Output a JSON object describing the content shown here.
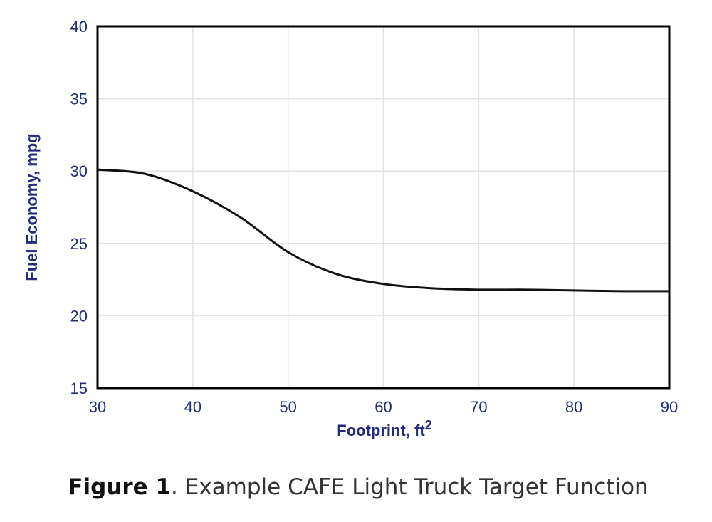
{
  "chart_data": {
    "type": "line",
    "y_label": "Fuel Economy, mpg",
    "x_label": "Footprint, ft",
    "x_label_superscript": "2",
    "x": [
      30,
      35,
      40,
      45,
      50,
      55,
      60,
      65,
      70,
      75,
      80,
      85,
      90
    ],
    "series": [
      {
        "color": "#111111",
        "values": [
          30.1,
          29.8,
          28.6,
          26.8,
          24.4,
          22.9,
          22.2,
          21.9,
          21.8,
          21.8,
          21.75,
          21.7,
          21.7
        ]
      }
    ],
    "xlim": [
      30,
      90
    ],
    "xticks": [
      30,
      40,
      50,
      60,
      70,
      80,
      90
    ],
    "ylim": [
      15,
      40
    ],
    "yticks": [
      15,
      20,
      25,
      30,
      35,
      40
    ],
    "grid": true
  },
  "caption": {
    "label": "Figure 1",
    "text": ". Example CAFE Light Truck Target Function"
  }
}
